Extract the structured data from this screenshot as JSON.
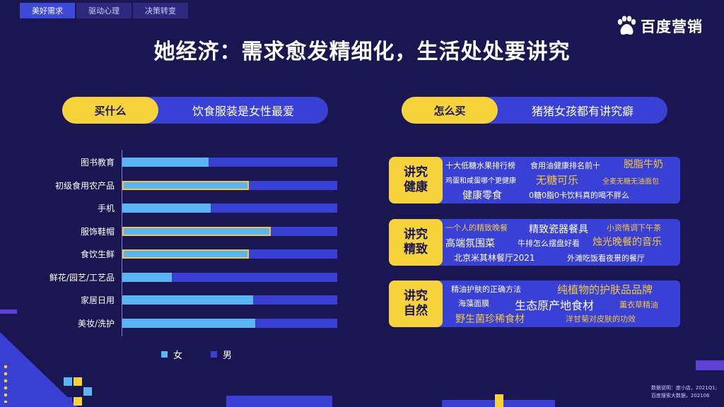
{
  "tabs": [
    {
      "label": "美好需求",
      "active": true
    },
    {
      "label": "驱动心理",
      "active": false
    },
    {
      "label": "决策转变",
      "active": false
    }
  ],
  "logo": {
    "text": "百度营销",
    "icon": "paw-icon"
  },
  "title": "她经济：需求愈发精细化，生活处处要讲究",
  "left_pill": {
    "tag": "买什么",
    "text": "饮食服装是女性最爱"
  },
  "right_pill": {
    "tag": "怎么买",
    "text": "猪猪女孩都有讲究癖"
  },
  "chart_data": {
    "type": "bar",
    "orientation": "horizontal",
    "stacked": true,
    "categories": [
      "图书教育",
      "初级食用农产品",
      "手机",
      "服饰鞋帽",
      "食饮生鲜",
      "鲜花/园艺/工艺品",
      "家居日用",
      "美妆/洗护"
    ],
    "series": [
      {
        "name": "女",
        "values": [
          40,
          59,
          41,
          69,
          59,
          23,
          61,
          62
        ],
        "color": "#5ab6f3"
      },
      {
        "name": "男",
        "values": [
          60,
          41,
          59,
          31,
          41,
          77,
          39,
          38
        ],
        "color": "#3a3fd4"
      }
    ],
    "highlighted": [
      "初级食用农产品",
      "服饰鞋帽",
      "食饮生鲜"
    ],
    "xlim": [
      0,
      100
    ],
    "legend": "bottom"
  },
  "cards": [
    {
      "label": [
        "讲究",
        "健康"
      ],
      "words": [
        {
          "text": "十大低糖水果排行榜",
          "yellow": false
        },
        {
          "text": "食用油健康排名前十",
          "yellow": false
        },
        {
          "text": "脱脂牛奶",
          "yellow": true
        },
        {
          "text": "鸡蛋和咸蛋哪个更健康",
          "yellow": false
        },
        {
          "text": "无糖可乐",
          "yellow": true
        },
        {
          "text": "全麦无糖无油面包",
          "yellow": true
        },
        {
          "text": "健康零食",
          "yellow": false
        },
        {
          "text": "0糖0脂0卡饮料真的喝不胖么",
          "yellow": false
        }
      ]
    },
    {
      "label": [
        "讲究",
        "精致"
      ],
      "words": [
        {
          "text": "一个人的精致晚餐",
          "yellow": true
        },
        {
          "text": "精致瓷器餐具",
          "yellow": false
        },
        {
          "text": "小资情调下午茶",
          "yellow": true
        },
        {
          "text": "高端氛围菜",
          "yellow": false
        },
        {
          "text": "牛排怎么摆盘好看",
          "yellow": false
        },
        {
          "text": "烛光晚餐的音乐",
          "yellow": true
        },
        {
          "text": "北京米其林餐厅2021",
          "yellow": false
        },
        {
          "text": "外滩吃饭看夜景的餐厅",
          "yellow": false
        }
      ]
    },
    {
      "label": [
        "讲究",
        "自然"
      ],
      "words": [
        {
          "text": "精油护肤的正确方法",
          "yellow": false
        },
        {
          "text": "纯植物的护肤品品牌",
          "yellow": true
        },
        {
          "text": "海藻面膜",
          "yellow": false
        },
        {
          "text": "生态原产地食材",
          "yellow": false
        },
        {
          "text": "薰衣草精油",
          "yellow": true
        },
        {
          "text": "野生菌珍稀食材",
          "yellow": true
        },
        {
          "text": "洋甘菊对皮肤的功效",
          "yellow": true
        }
      ]
    }
  ],
  "note": {
    "line1": "数据说明：度小店，2021Q1;",
    "line2": "百度搜索大数据，202106"
  },
  "colors": {
    "background": "#1a1652",
    "accent_yellow": "#f6d33b",
    "blue": "#3840d6",
    "light_blue": "#5ab6f3"
  }
}
